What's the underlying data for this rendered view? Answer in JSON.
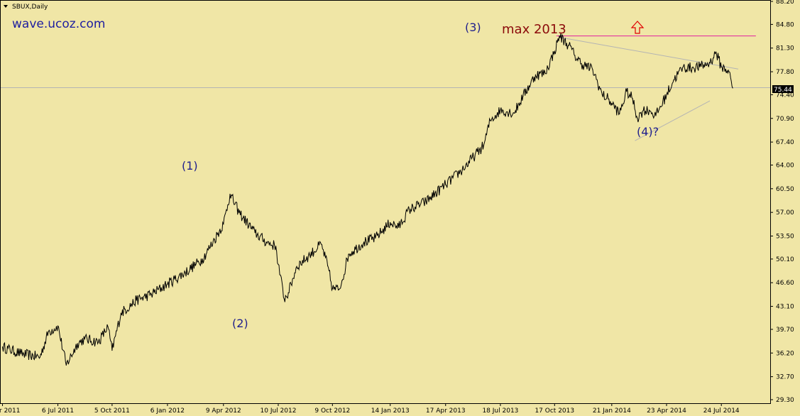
{
  "header": {
    "symbol_label": "SBUX,Daily",
    "menu_icon": "triangle-down-icon"
  },
  "brand": {
    "text": "wave.ucoz.com"
  },
  "annotations": {
    "wave1": "(1)",
    "wave2": "(2)",
    "wave3": "(3)",
    "wave4": "(4)?",
    "max_label": "max 2013",
    "max_arrow_icon": "arrow-up-icon"
  },
  "current_price": {
    "label": "75.44",
    "value": 75.44
  },
  "colors": {
    "background": "#F0E6A6",
    "price_line": "#000000",
    "max_line": "#E020A0",
    "trendline": "#B4B4B4",
    "price_box": "#000000",
    "wave_labels": "#1E1E8C",
    "max_label": "#8B0A0A",
    "arrow": "#E00000"
  },
  "chart_data": {
    "type": "line",
    "title": "",
    "xlabel": "",
    "ylabel": "",
    "ylim": [
      29.3,
      88.2
    ],
    "grid": false,
    "y_ticks": [
      "88.20",
      "84.80",
      "81.30",
      "77.80",
      "74.40",
      "70.90",
      "67.40",
      "64.00",
      "60.50",
      "57.00",
      "53.50",
      "50.10",
      "46.60",
      "43.10",
      "39.70",
      "36.20",
      "32.70",
      "29.30"
    ],
    "x_ticks": [
      "4 Apr 2011",
      "6 Jul 2011",
      "5 Oct 2011",
      "6 Jan 2012",
      "9 Apr 2012",
      "10 Jul 2012",
      "9 Oct 2012",
      "14 Jan 2013",
      "17 Apr 2013",
      "18 Jul 2013",
      "17 Oct 2013",
      "21 Jan 2014",
      "23 Apr 2014",
      "24 Jul 2014"
    ],
    "series": [
      {
        "x": [
          "2011-04-04",
          "2011-05-05",
          "2011-06-06",
          "2011-06-20",
          "2011-07-06",
          "2011-07-20",
          "2011-08-08",
          "2011-08-20",
          "2011-09-12",
          "2011-09-28",
          "2011-10-05",
          "2011-10-20",
          "2011-11-15",
          "2011-12-10",
          "2012-01-06",
          "2012-02-05",
          "2012-03-05",
          "2012-03-25",
          "2012-04-09",
          "2012-04-20",
          "2012-05-05",
          "2012-06-01",
          "2012-06-20",
          "2012-07-06",
          "2012-07-10",
          "2012-07-20",
          "2012-07-27",
          "2012-08-10",
          "2012-09-01",
          "2012-09-20",
          "2012-10-01",
          "2012-10-09",
          "2012-10-20",
          "2012-10-25",
          "2012-11-05",
          "2012-12-01",
          "2012-12-20",
          "2013-01-14",
          "2013-01-28",
          "2013-02-15",
          "2013-03-15",
          "2013-04-17",
          "2013-05-15",
          "2013-06-20",
          "2013-07-01",
          "2013-07-18",
          "2013-08-10",
          "2013-08-25",
          "2013-09-15",
          "2013-10-01",
          "2013-10-17",
          "2013-10-25",
          "2013-11-10",
          "2013-11-20",
          "2013-12-01",
          "2013-12-20",
          "2014-01-05",
          "2014-01-15",
          "2014-01-21",
          "2014-02-03",
          "2014-02-15",
          "2014-02-25",
          "2014-03-05",
          "2014-03-15",
          "2014-03-25",
          "2014-04-05",
          "2014-04-23",
          "2014-05-05",
          "2014-05-20",
          "2014-06-05",
          "2014-06-20",
          "2014-07-05",
          "2014-07-15",
          "2014-07-24",
          "2014-08-05",
          "2014-08-12"
        ],
        "values": [
          37.1,
          36.1,
          35.6,
          39.3,
          40.2,
          34.4,
          37.6,
          38.3,
          37.8,
          40.1,
          36.6,
          42.1,
          44.0,
          44.9,
          46.4,
          48.1,
          50.1,
          53.0,
          55.3,
          59.7,
          57.0,
          54.0,
          52.6,
          52.0,
          49.3,
          44.2,
          45.1,
          49.0,
          50.7,
          52.3,
          49.1,
          45.7,
          45.6,
          46.9,
          50.8,
          52.6,
          53.2,
          55.5,
          54.8,
          57.4,
          58.6,
          61.1,
          63.3,
          66.9,
          70.6,
          72.1,
          71.7,
          74.2,
          77.3,
          77.6,
          80.8,
          83.1,
          81.7,
          80.2,
          79.0,
          78.1,
          74.4,
          73.8,
          73.1,
          71.6,
          74.9,
          73.8,
          70.9,
          72.1,
          72.1,
          71.3,
          74.4,
          76.6,
          78.4,
          78.4,
          78.6,
          79.1,
          80.7,
          78.5,
          78.0,
          75.4
        ]
      }
    ]
  }
}
